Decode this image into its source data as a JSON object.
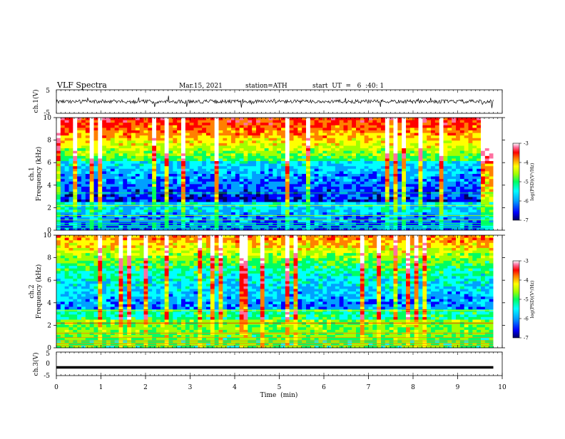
{
  "header": {
    "title": "VLF  Spectra",
    "date": "Mar.15, 2021",
    "station": "station=ATH",
    "start": "start  UT  =   6  :40: 1"
  },
  "colors": {
    "colormap": [
      "#000060",
      "#0000ff",
      "#00a0ff",
      "#00ffff",
      "#00ff60",
      "#a0ff00",
      "#ffff00",
      "#ff8000",
      "#ff0000",
      "#ff70a0",
      "#ffffff"
    ],
    "waveform": "#000000"
  },
  "chart_data": [
    {
      "type": "line",
      "name": "ch1-waveform",
      "ylabel": "ch.1(V)",
      "ylim": [
        -5,
        5
      ],
      "yticks": [
        "5",
        "-5"
      ],
      "x_range_min": [
        0,
        9.8
      ],
      "description_level": 0.0
    },
    {
      "type": "heatmap",
      "name": "ch1-spectrogram",
      "ylabel": "Frequency  (kHz)",
      "channel_label": "ch.1",
      "ylim": [
        0,
        10
      ],
      "yticks": [
        "0",
        "2",
        "4",
        "6",
        "8",
        "10"
      ],
      "colorbar": {
        "label": "log(PSD)(V²/Hz)",
        "ticks": [
          "-3",
          "-4",
          "-5",
          "-6",
          "-7"
        ],
        "range": [
          -7,
          -3
        ]
      }
    },
    {
      "type": "heatmap",
      "name": "ch2-spectrogram",
      "ylabel": "Frequency  (kHz)",
      "channel_label": "ch.2",
      "ylim": [
        0,
        10
      ],
      "yticks": [
        "0",
        "2",
        "4",
        "6",
        "8",
        "10"
      ],
      "colorbar": {
        "label": "log(PSD)(V²/Hz)",
        "ticks": [
          "-3",
          "-4",
          "-5",
          "-6",
          "-7"
        ],
        "range": [
          -7,
          -3
        ]
      }
    },
    {
      "type": "line",
      "name": "ch3-waveform",
      "ylabel": "ch.3(V)",
      "ylim": [
        -5,
        5
      ],
      "yticks": [
        "5",
        "0",
        "-5"
      ],
      "level": -1.5
    }
  ],
  "xaxis": {
    "label": "Time  (min)",
    "ticks": [
      "0",
      "1",
      "2",
      "3",
      "4",
      "5",
      "6",
      "7",
      "8",
      "9",
      "10"
    ],
    "range": [
      0,
      10
    ],
    "data_end": 9.8
  }
}
